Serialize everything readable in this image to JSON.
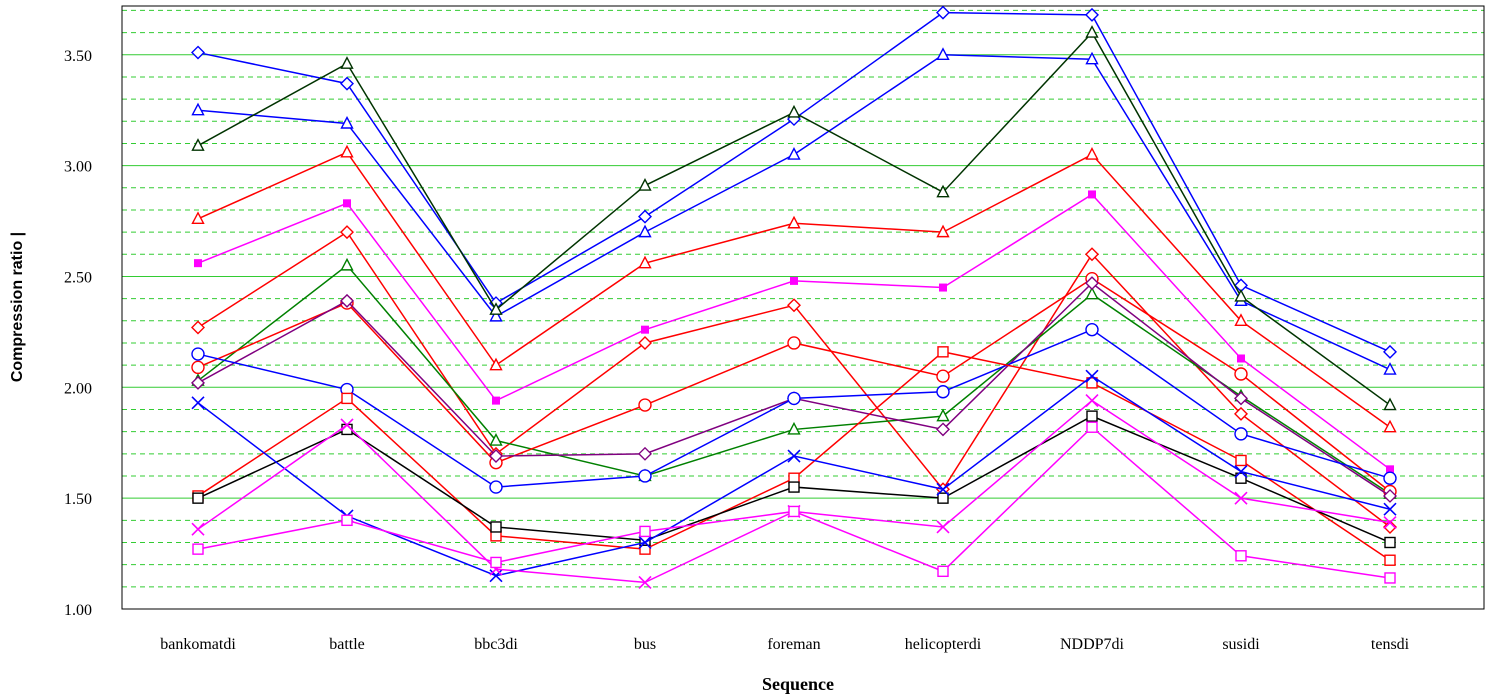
{
  "chart_data": {
    "type": "line",
    "xlabel": "Sequence",
    "ylabel": "Compression ratio   |",
    "ylim": [
      1.0,
      3.72
    ],
    "yticks": [
      "1.00",
      "1.50",
      "2.00",
      "2.50",
      "3.00",
      "3.50"
    ],
    "major_grid_step": 0.5,
    "minor_grid_step": 0.1,
    "grid": true,
    "grid_color": "#33cc33",
    "categories": [
      "bankomatdi",
      "battle",
      "bbc3di",
      "bus",
      "foreman",
      "helicopterdi",
      "NDDP7di",
      "susidi",
      "tensdi"
    ],
    "series": [
      {
        "color": "#0000ff",
        "marker": "diamond",
        "values": [
          3.51,
          3.37,
          2.38,
          2.77,
          3.21,
          3.69,
          3.68,
          2.46,
          2.16
        ]
      },
      {
        "color": "#0000ff",
        "marker": "triangle",
        "values": [
          3.25,
          3.19,
          2.32,
          2.7,
          3.05,
          3.5,
          3.48,
          2.39,
          2.08
        ]
      },
      {
        "color": "#003300",
        "marker": "triangle",
        "values": [
          3.09,
          3.46,
          2.35,
          2.91,
          3.24,
          2.88,
          3.6,
          2.41,
          1.92
        ]
      },
      {
        "color": "#ff0000",
        "marker": "triangle",
        "values": [
          2.76,
          3.06,
          2.1,
          2.56,
          2.74,
          2.7,
          3.05,
          2.3,
          1.82
        ]
      },
      {
        "color": "#ff00ff",
        "marker": "filled-square",
        "values": [
          2.56,
          2.83,
          1.94,
          2.26,
          2.48,
          2.45,
          2.87,
          2.13,
          1.63
        ]
      },
      {
        "color": "#ff0000",
        "marker": "diamond",
        "values": [
          2.27,
          2.7,
          1.7,
          2.2,
          2.37,
          1.54,
          2.6,
          1.88,
          1.37
        ]
      },
      {
        "color": "#008000",
        "marker": "triangle",
        "values": [
          2.03,
          2.55,
          1.76,
          1.6,
          1.81,
          1.87,
          2.42,
          1.96,
          1.52
        ]
      },
      {
        "color": "#ff0000",
        "marker": "circle",
        "values": [
          2.09,
          2.38,
          1.66,
          1.92,
          2.2,
          2.05,
          2.49,
          2.06,
          1.53
        ]
      },
      {
        "color": "#800080",
        "marker": "diamond",
        "values": [
          2.02,
          2.39,
          1.69,
          1.7,
          1.95,
          1.81,
          2.47,
          1.95,
          1.51
        ]
      },
      {
        "color": "#0000ff",
        "marker": "circle",
        "values": [
          2.15,
          1.99,
          1.55,
          1.6,
          1.95,
          1.98,
          2.26,
          1.79,
          1.59
        ]
      },
      {
        "color": "#ff0000",
        "marker": "square",
        "values": [
          1.51,
          1.95,
          1.33,
          1.27,
          1.59,
          2.16,
          2.02,
          1.67,
          1.22
        ]
      },
      {
        "color": "#000000",
        "marker": "square",
        "values": [
          1.5,
          1.81,
          1.37,
          1.31,
          1.55,
          1.5,
          1.87,
          1.59,
          1.3
        ]
      },
      {
        "color": "#0000ff",
        "marker": "x",
        "values": [
          1.93,
          1.42,
          1.15,
          1.3,
          1.69,
          1.54,
          2.05,
          1.62,
          1.45
        ]
      },
      {
        "color": "#ff00ff",
        "marker": "x",
        "values": [
          1.36,
          1.83,
          1.18,
          1.12,
          1.44,
          1.37,
          1.94,
          1.5,
          1.39
        ]
      },
      {
        "color": "#ff00ff",
        "marker": "square",
        "values": [
          1.27,
          1.4,
          1.21,
          1.35,
          1.44,
          1.17,
          1.82,
          1.24,
          1.14
        ]
      }
    ]
  }
}
